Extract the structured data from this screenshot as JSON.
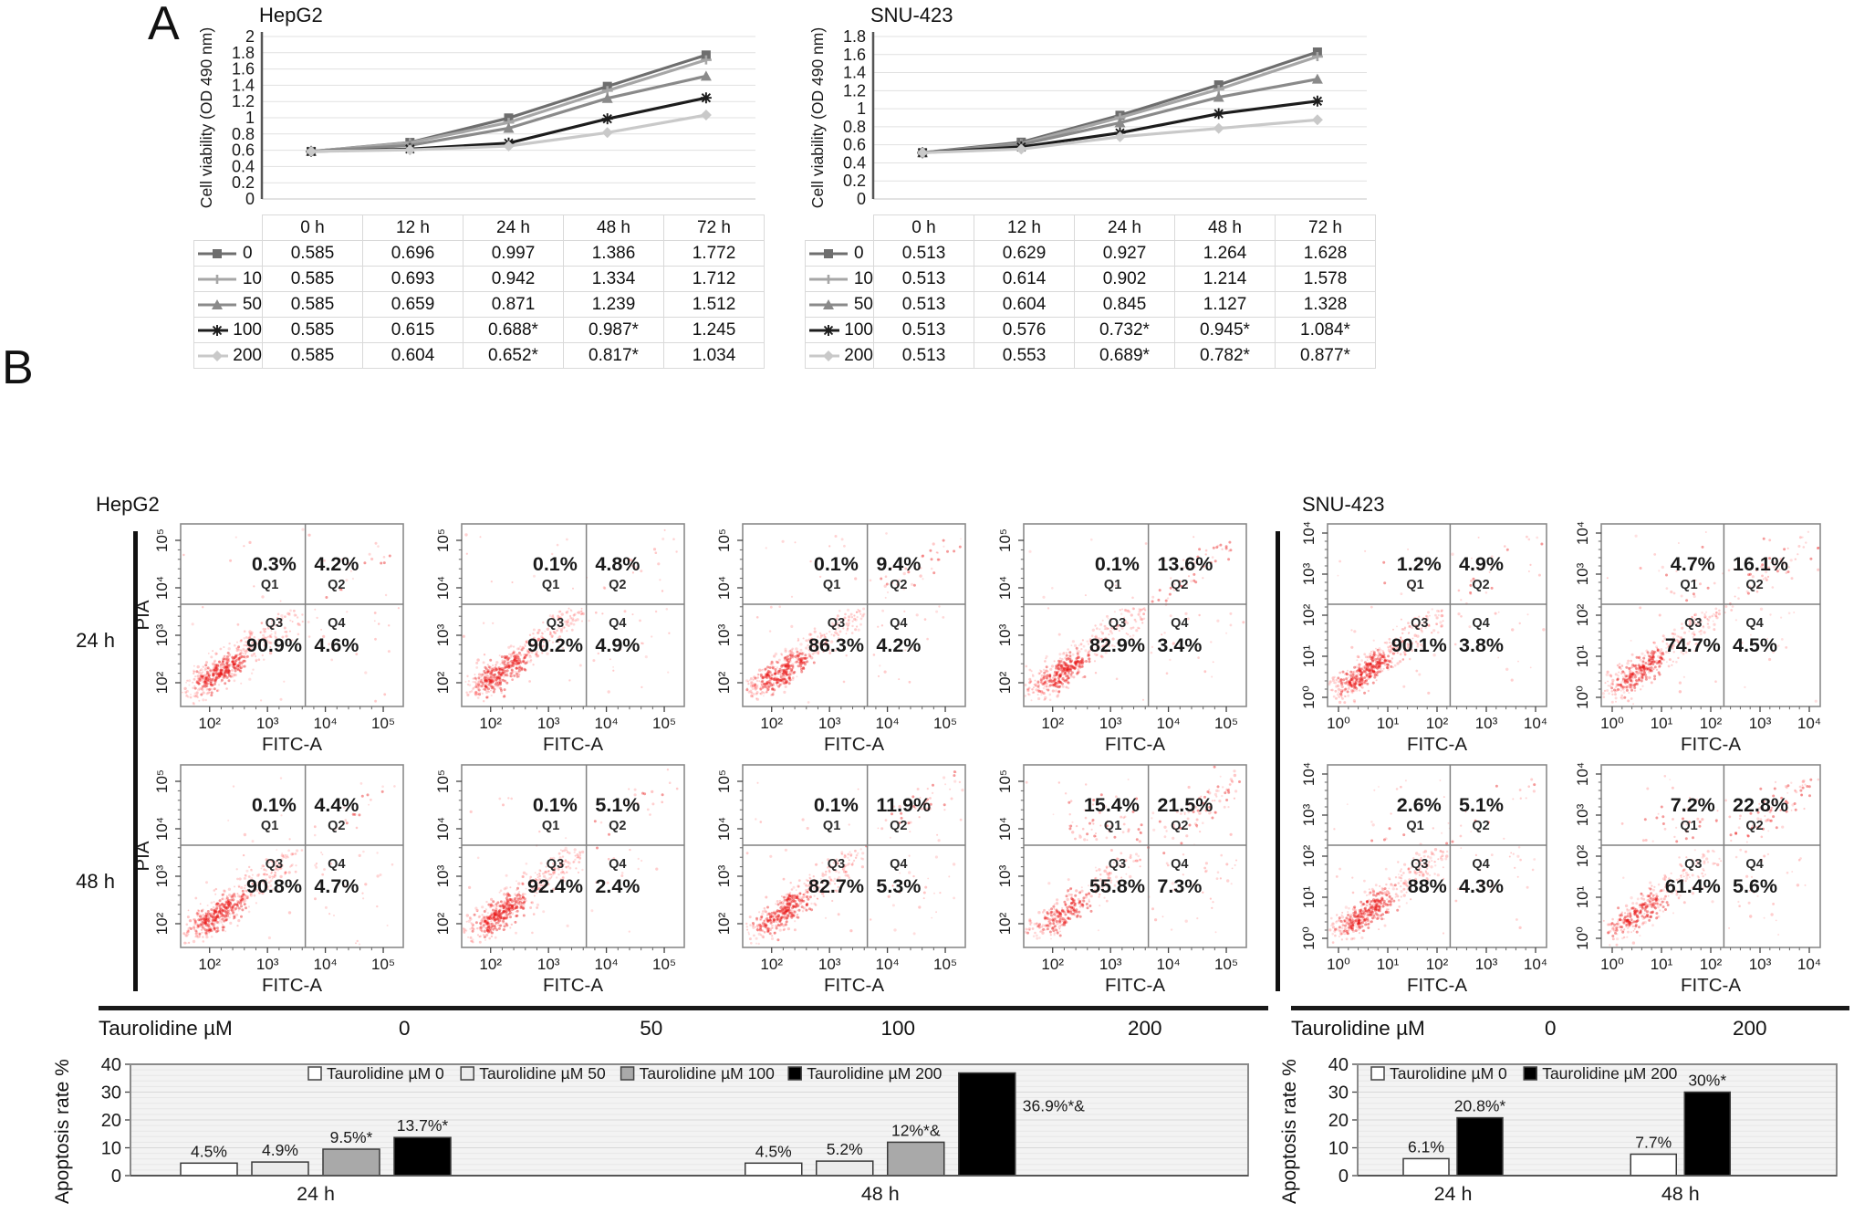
{
  "figure": {
    "panel_a": "A",
    "panel_b": "B"
  },
  "layout": {
    "flow_titles": [
      "HepG2",
      "SNU-423"
    ],
    "row_labels": [
      "24 h",
      "48 h"
    ],
    "quadrant_names": [
      "Q1",
      "Q2",
      "Q3",
      "Q4"
    ],
    "taurolidine_label": "Taurolidine µM",
    "hepg2_doses": [
      "0",
      "50",
      "100",
      "200"
    ],
    "snu_doses": [
      "0",
      "200"
    ]
  },
  "chart_data": [
    {
      "type": "line",
      "title": "HepG2",
      "ylabel": "Cell viability (OD 490 nm)",
      "ylim": [
        0,
        2
      ],
      "ytick_step": 0.2,
      "grid": true,
      "legend_position": "table-left",
      "categories": [
        "0 h",
        "12 h",
        "24 h",
        "48 h",
        "72 h"
      ],
      "series": [
        {
          "name": "0",
          "color": "#6e6e6e",
          "marker": "square",
          "values": [
            "0.585",
            "0.696",
            "0.997",
            "1.386",
            "1.772"
          ]
        },
        {
          "name": "10",
          "color": "#a6a6a6",
          "marker": "plus",
          "values": [
            "0.585",
            "0.693",
            "0.942",
            "1.334",
            "1.712"
          ]
        },
        {
          "name": "50",
          "color": "#8a8a8a",
          "marker": "triangle",
          "values": [
            "0.585",
            "0.659",
            "0.871",
            "1.239",
            "1.512"
          ]
        },
        {
          "name": "100",
          "color": "#1c1c1c",
          "marker": "asterisk",
          "values": [
            "0.585",
            "0.615",
            "0.688*",
            "0.987*",
            "1.245"
          ]
        },
        {
          "name": "200",
          "color": "#c9c9c9",
          "marker": "diamond",
          "values": [
            "0.585",
            "0.604",
            "0.652*",
            "0.817*",
            "1.034"
          ]
        }
      ]
    },
    {
      "type": "line",
      "title": "SNU-423",
      "ylabel": "Cell viability (OD 490 nm)",
      "ylim": [
        0,
        1.8
      ],
      "ytick_step": 0.2,
      "grid": true,
      "legend_position": "table-left",
      "categories": [
        "0 h",
        "12 h",
        "24 h",
        "48 h",
        "72 h"
      ],
      "series": [
        {
          "name": "0",
          "color": "#6e6e6e",
          "marker": "square",
          "values": [
            "0.513",
            "0.629",
            "0.927",
            "1.264",
            "1.628"
          ]
        },
        {
          "name": "10",
          "color": "#a6a6a6",
          "marker": "plus",
          "values": [
            "0.513",
            "0.614",
            "0.902",
            "1.214",
            "1.578"
          ]
        },
        {
          "name": "50",
          "color": "#8a8a8a",
          "marker": "triangle",
          "values": [
            "0.513",
            "0.604",
            "0.845",
            "1.127",
            "1.328"
          ]
        },
        {
          "name": "100",
          "color": "#1c1c1c",
          "marker": "asterisk",
          "values": [
            "0.513",
            "0.576",
            "0.732*",
            "0.945*",
            "1.084*"
          ]
        },
        {
          "name": "200",
          "color": "#c9c9c9",
          "marker": "diamond",
          "values": [
            "0.513",
            "0.553",
            "0.689*",
            "0.782*",
            "0.877*"
          ]
        }
      ]
    },
    {
      "type": "scatter",
      "cell_line": "HepG2",
      "time": "24 h",
      "dose": "0",
      "xlabel": "FITC-A",
      "ylabel": "PIA",
      "xticks": [
        "10²",
        "10³",
        "10⁴",
        "10⁵"
      ],
      "yticks": [
        "10²",
        "10³",
        "10⁴",
        "10⁵"
      ],
      "quadrants": {
        "Q1": "0.3%",
        "Q2": "4.2%",
        "Q3": "90.9%",
        "Q4": "4.6%"
      }
    },
    {
      "type": "scatter",
      "cell_line": "HepG2",
      "time": "24 h",
      "dose": "50",
      "xlabel": "FITC-A",
      "ylabel": "PIA",
      "xticks": [
        "10²",
        "10³",
        "10⁴",
        "10⁵"
      ],
      "yticks": [
        "10²",
        "10³",
        "10⁴",
        "10⁵"
      ],
      "quadrants": {
        "Q1": "0.1%",
        "Q2": "4.8%",
        "Q3": "90.2%",
        "Q4": "4.9%"
      }
    },
    {
      "type": "scatter",
      "cell_line": "HepG2",
      "time": "24 h",
      "dose": "100",
      "xlabel": "FITC-A",
      "ylabel": "PIA",
      "xticks": [
        "10²",
        "10³",
        "10⁴",
        "10⁵"
      ],
      "yticks": [
        "10²",
        "10³",
        "10⁴",
        "10⁵"
      ],
      "quadrants": {
        "Q1": "0.1%",
        "Q2": "9.4%",
        "Q3": "86.3%",
        "Q4": "4.2%"
      }
    },
    {
      "type": "scatter",
      "cell_line": "HepG2",
      "time": "24 h",
      "dose": "200",
      "xlabel": "FITC-A",
      "ylabel": "PIA",
      "xticks": [
        "10²",
        "10³",
        "10⁴",
        "10⁵"
      ],
      "yticks": [
        "10²",
        "10³",
        "10⁴",
        "10⁵"
      ],
      "quadrants": {
        "Q1": "0.1%",
        "Q2": "13.6%",
        "Q3": "82.9%",
        "Q4": "3.4%"
      }
    },
    {
      "type": "scatter",
      "cell_line": "HepG2",
      "time": "48 h",
      "dose": "0",
      "xlabel": "FITC-A",
      "ylabel": "PIA",
      "xticks": [
        "10²",
        "10³",
        "10⁴",
        "10⁵"
      ],
      "yticks": [
        "10²",
        "10³",
        "10⁴",
        "10⁵"
      ],
      "quadrants": {
        "Q1": "0.1%",
        "Q2": "4.4%",
        "Q3": "90.8%",
        "Q4": "4.7%"
      }
    },
    {
      "type": "scatter",
      "cell_line": "HepG2",
      "time": "48 h",
      "dose": "50",
      "xlabel": "FITC-A",
      "ylabel": "PIA",
      "xticks": [
        "10²",
        "10³",
        "10⁴",
        "10⁵"
      ],
      "yticks": [
        "10²",
        "10³",
        "10⁴",
        "10⁵"
      ],
      "quadrants": {
        "Q1": "0.1%",
        "Q2": "5.1%",
        "Q3": "92.4%",
        "Q4": "2.4%"
      }
    },
    {
      "type": "scatter",
      "cell_line": "HepG2",
      "time": "48 h",
      "dose": "100",
      "xlabel": "FITC-A",
      "ylabel": "PIA",
      "xticks": [
        "10²",
        "10³",
        "10⁴",
        "10⁵"
      ],
      "yticks": [
        "10²",
        "10³",
        "10⁴",
        "10⁵"
      ],
      "quadrants": {
        "Q1": "0.1%",
        "Q2": "11.9%",
        "Q3": "82.7%",
        "Q4": "5.3%"
      }
    },
    {
      "type": "scatter",
      "cell_line": "HepG2",
      "time": "48 h",
      "dose": "200",
      "xlabel": "FITC-A",
      "ylabel": "PIA",
      "xticks": [
        "10²",
        "10³",
        "10⁴",
        "10⁵"
      ],
      "yticks": [
        "10²",
        "10³",
        "10⁴",
        "10⁵"
      ],
      "quadrants": {
        "Q1": "15.4%",
        "Q2": "21.5%",
        "Q3": "55.8%",
        "Q4": "7.3%"
      }
    },
    {
      "type": "scatter",
      "cell_line": "SNU-423",
      "time": "24 h",
      "dose": "0",
      "xlabel": "FITC-A",
      "xticks": [
        "10⁰",
        "10¹",
        "10²",
        "10³",
        "10⁴"
      ],
      "yticks": [
        "10⁰",
        "10¹",
        "10²",
        "10³",
        "10⁴"
      ],
      "quadrants": {
        "Q1": "1.2%",
        "Q2": "4.9%",
        "Q3": "90.1%",
        "Q4": "3.8%"
      }
    },
    {
      "type": "scatter",
      "cell_line": "SNU-423",
      "time": "24 h",
      "dose": "200",
      "xlabel": "FITC-A",
      "xticks": [
        "10⁰",
        "10¹",
        "10²",
        "10³",
        "10⁴"
      ],
      "yticks": [
        "10⁰",
        "10¹",
        "10²",
        "10³",
        "10⁴"
      ],
      "quadrants": {
        "Q1": "4.7%",
        "Q2": "16.1%",
        "Q3": "74.7%",
        "Q4": "4.5%"
      }
    },
    {
      "type": "scatter",
      "cell_line": "SNU-423",
      "time": "48 h",
      "dose": "0",
      "xlabel": "FITC-A",
      "xticks": [
        "10⁰",
        "10¹",
        "10²",
        "10³",
        "10⁴"
      ],
      "yticks": [
        "10⁰",
        "10¹",
        "10²",
        "10³",
        "10⁴"
      ],
      "quadrants": {
        "Q1": "2.6%",
        "Q2": "5.1%",
        "Q3": "88%",
        "Q4": "4.3%"
      }
    },
    {
      "type": "scatter",
      "cell_line": "SNU-423",
      "time": "48 h",
      "dose": "200",
      "xlabel": "FITC-A",
      "xticks": [
        "10⁰",
        "10¹",
        "10²",
        "10³",
        "10⁴"
      ],
      "yticks": [
        "10⁰",
        "10¹",
        "10²",
        "10³",
        "10⁴"
      ],
      "quadrants": {
        "Q1": "7.2%",
        "Q2": "22.8%",
        "Q3": "61.4%",
        "Q4": "5.6%"
      }
    },
    {
      "type": "bar",
      "cell_line": "HepG2",
      "ylabel": "Apoptosis rate %",
      "ylim": [
        0,
        40
      ],
      "yticks": [
        0,
        10,
        20,
        30,
        40
      ],
      "grid": true,
      "legend_position": "top-center",
      "legend": [
        "Taurolidine µM 0",
        "Taurolidine µM 50",
        "Taurolidine µM 100",
        "Taurolidine µM 200"
      ],
      "colors": [
        "#ffffff",
        "#ebebeb",
        "#a9a9a9",
        "#000000"
      ],
      "groups": [
        "24 h",
        "48 h"
      ],
      "values": [
        [
          4.5,
          4.9,
          9.5,
          13.7
        ],
        [
          4.5,
          5.2,
          12,
          36.9
        ]
      ],
      "labels": [
        [
          "4.5%",
          "4.9%",
          "9.5%*",
          "13.7%*"
        ],
        [
          "4.5%",
          "5.2%",
          "12%*&",
          "36.9%*&"
        ]
      ]
    },
    {
      "type": "bar",
      "cell_line": "SNU-423",
      "ylabel": "Apoptosis rate %",
      "ylim": [
        0,
        40
      ],
      "yticks": [
        0,
        10,
        20,
        30,
        40
      ],
      "grid": true,
      "legend_position": "top-center",
      "legend": [
        "Taurolidine µM 0",
        "Taurolidine µM 200"
      ],
      "colors": [
        "#ffffff",
        "#000000"
      ],
      "groups": [
        "24 h",
        "48 h"
      ],
      "values": [
        [
          6.1,
          20.8
        ],
        [
          7.7,
          30
        ]
      ],
      "labels": [
        [
          "6.1%",
          "20.8%*"
        ],
        [
          "7.7%",
          "30%*"
        ]
      ]
    }
  ]
}
